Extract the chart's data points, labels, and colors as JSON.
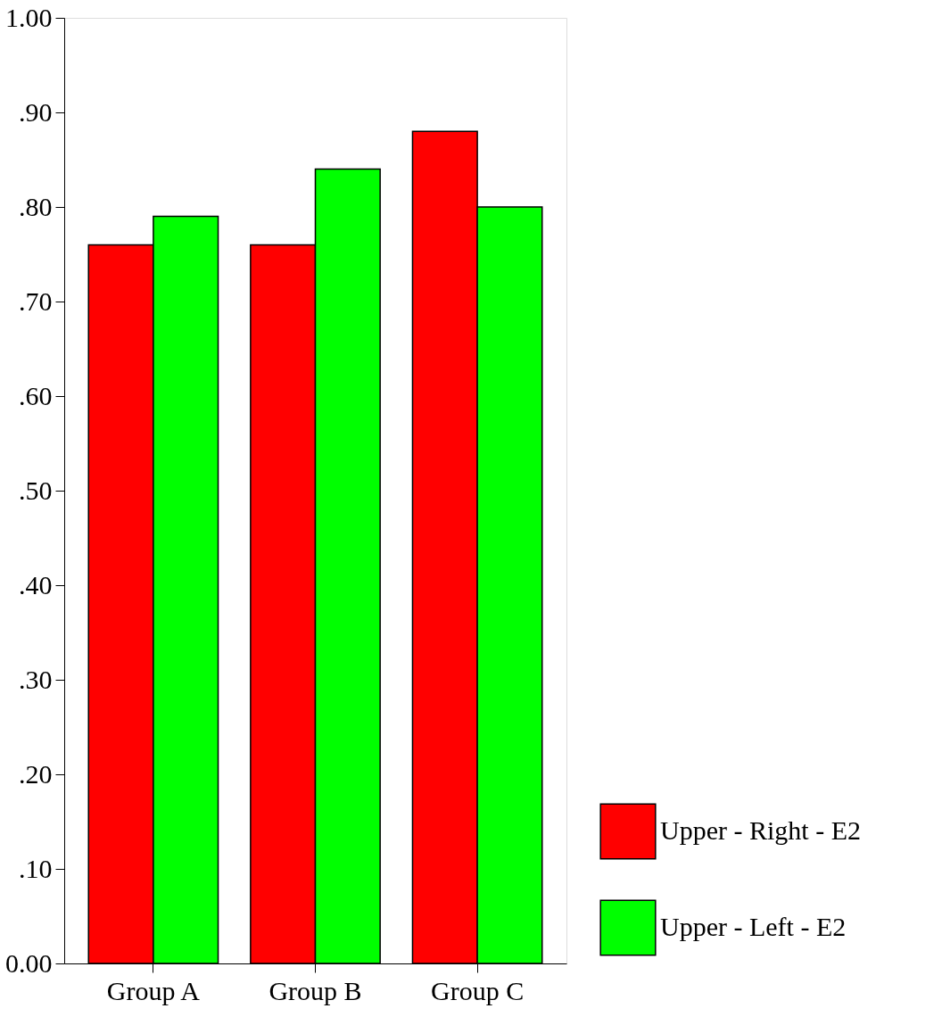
{
  "chart_data": {
    "type": "bar",
    "categories": [
      "Group A",
      "Group B",
      "Group C"
    ],
    "series": [
      {
        "name": "Upper - Right - E2",
        "color": "#ff0000",
        "values": [
          0.76,
          0.76,
          0.88
        ]
      },
      {
        "name": "Upper - Left - E2",
        "color": "#00ff00",
        "values": [
          0.79,
          0.84,
          0.8
        ]
      }
    ],
    "ylim": [
      0,
      1
    ],
    "yticks": [
      {
        "value": 0,
        "label": "0.00"
      },
      {
        "value": 0.1,
        "label": ".10"
      },
      {
        "value": 0.2,
        "label": ".20"
      },
      {
        "value": 0.3,
        "label": ".30"
      },
      {
        "value": 0.4,
        "label": ".40"
      },
      {
        "value": 0.5,
        "label": ".50"
      },
      {
        "value": 0.6,
        "label": ".60"
      },
      {
        "value": 0.7,
        "label": ".70"
      },
      {
        "value": 0.8,
        "label": ".80"
      },
      {
        "value": 0.9,
        "label": ".90"
      },
      {
        "value": 1,
        "label": "1.00"
      }
    ],
    "grid": false,
    "legend": "bottom right"
  }
}
